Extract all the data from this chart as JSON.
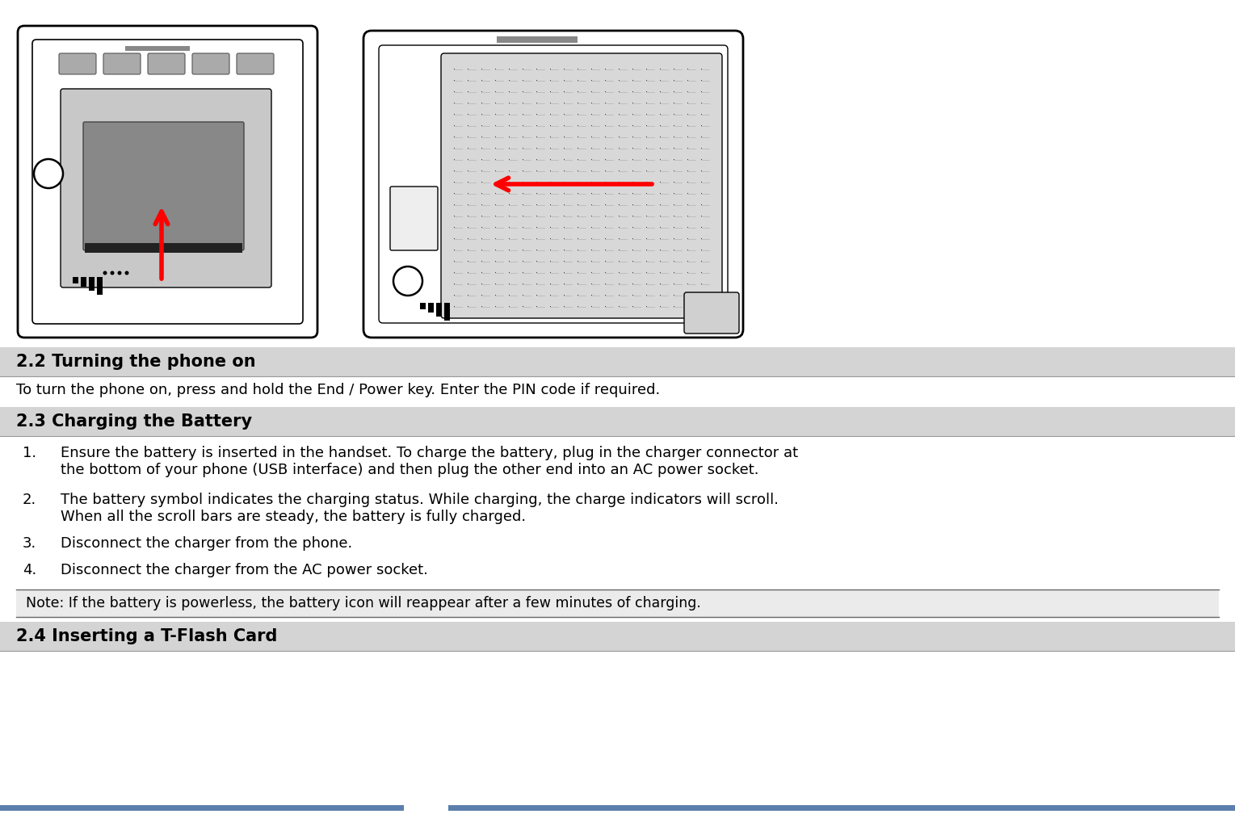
{
  "fig_width": 15.29,
  "fig_height": 10.08,
  "bg_color": "#ffffff",
  "header_bg_color": "#d4d4d4",
  "note_bg_color": "#ebebeb",
  "header_text_color": "#000000",
  "body_text_color": "#000000",
  "bottom_bar_color": "#5b7fad",
  "section_22_title": "2.2 Turning the phone on",
  "section_22_body": "To turn the phone on, press and hold the End / Power key. Enter the PIN code if required.",
  "section_23_title": "2.3 Charging the Battery",
  "item1_num": "1.",
  "item1_line1": "Ensure the battery is inserted in the handset. To charge the battery, plug in the charger connector at",
  "item1_line2": "the bottom of your phone (USB interface) and then plug the other end into an AC power socket.",
  "item2_num": "2.",
  "item2_line1": "The battery symbol indicates the charging status. While charging, the charge indicators will scroll.",
  "item2_line2": "When all the scroll bars are steady, the battery is fully charged.",
  "item3_num": "3.",
  "item3_line1": "Disconnect the charger from the phone.",
  "item4_num": "4.",
  "item4_line1": "Disconnect the charger from the AC power socket.",
  "note_text": "Note: If the battery is powerless, the battery icon will reappear after a few minutes of charging.",
  "section_24_title": "2.4 Inserting a T-Flash Card",
  "header_fontsize": 15,
  "body_fontsize": 13,
  "bottom_bar_color2": "#5b7fad"
}
